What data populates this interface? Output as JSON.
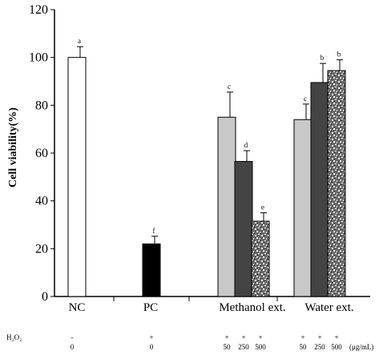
{
  "chart_data": {
    "type": "bar",
    "title": "",
    "xlabel": "",
    "ylabel": "Cell viability(%)",
    "ylim": [
      0,
      120
    ],
    "yticks": [
      0,
      20,
      40,
      60,
      80,
      100,
      120
    ],
    "grid": false,
    "legend": "none",
    "groups": [
      "NC",
      "PC",
      "Methanol ext.",
      "Water ext."
    ],
    "bars": [
      {
        "group": "NC",
        "value": 100,
        "error": 4.5,
        "letter": "a",
        "pattern": "white"
      },
      {
        "group": "PC",
        "value": 22,
        "error": 3.2,
        "letter": "f",
        "pattern": "black"
      },
      {
        "group": "Methanol ext.",
        "value": 75,
        "error": 10.5,
        "letter": "c",
        "pattern": "lightgray"
      },
      {
        "group": "Methanol ext.",
        "value": 56.5,
        "error": 4.5,
        "letter": "d",
        "pattern": "darkgray"
      },
      {
        "group": "Methanol ext.",
        "value": 31.5,
        "error": 3.5,
        "letter": "e",
        "pattern": "granite"
      },
      {
        "group": "Water ext.",
        "value": 74,
        "error": 6.5,
        "letter": "c",
        "pattern": "lightgray"
      },
      {
        "group": "Water ext.",
        "value": 89.5,
        "error": 8,
        "letter": "b",
        "pattern": "darkgray"
      },
      {
        "group": "Water ext.",
        "value": 94.5,
        "error": 4.5,
        "letter": "b",
        "pattern": "granite"
      }
    ],
    "treatment_rows": {
      "h2o2_label": "H₂O₂",
      "h2o2_signs": [
        "-",
        "+",
        "+",
        "+",
        "+",
        "+",
        "+",
        "+"
      ],
      "concentrations": [
        "0",
        "0",
        "50",
        "250",
        "500",
        "50",
        "250",
        "500"
      ],
      "unit": "(μg/mL)"
    },
    "colors": {
      "white": "#ffffff",
      "black": "#000000",
      "lightgray": "#c8c8c8",
      "darkgray": "#444444",
      "granite_base": "#5a5a5a"
    }
  }
}
